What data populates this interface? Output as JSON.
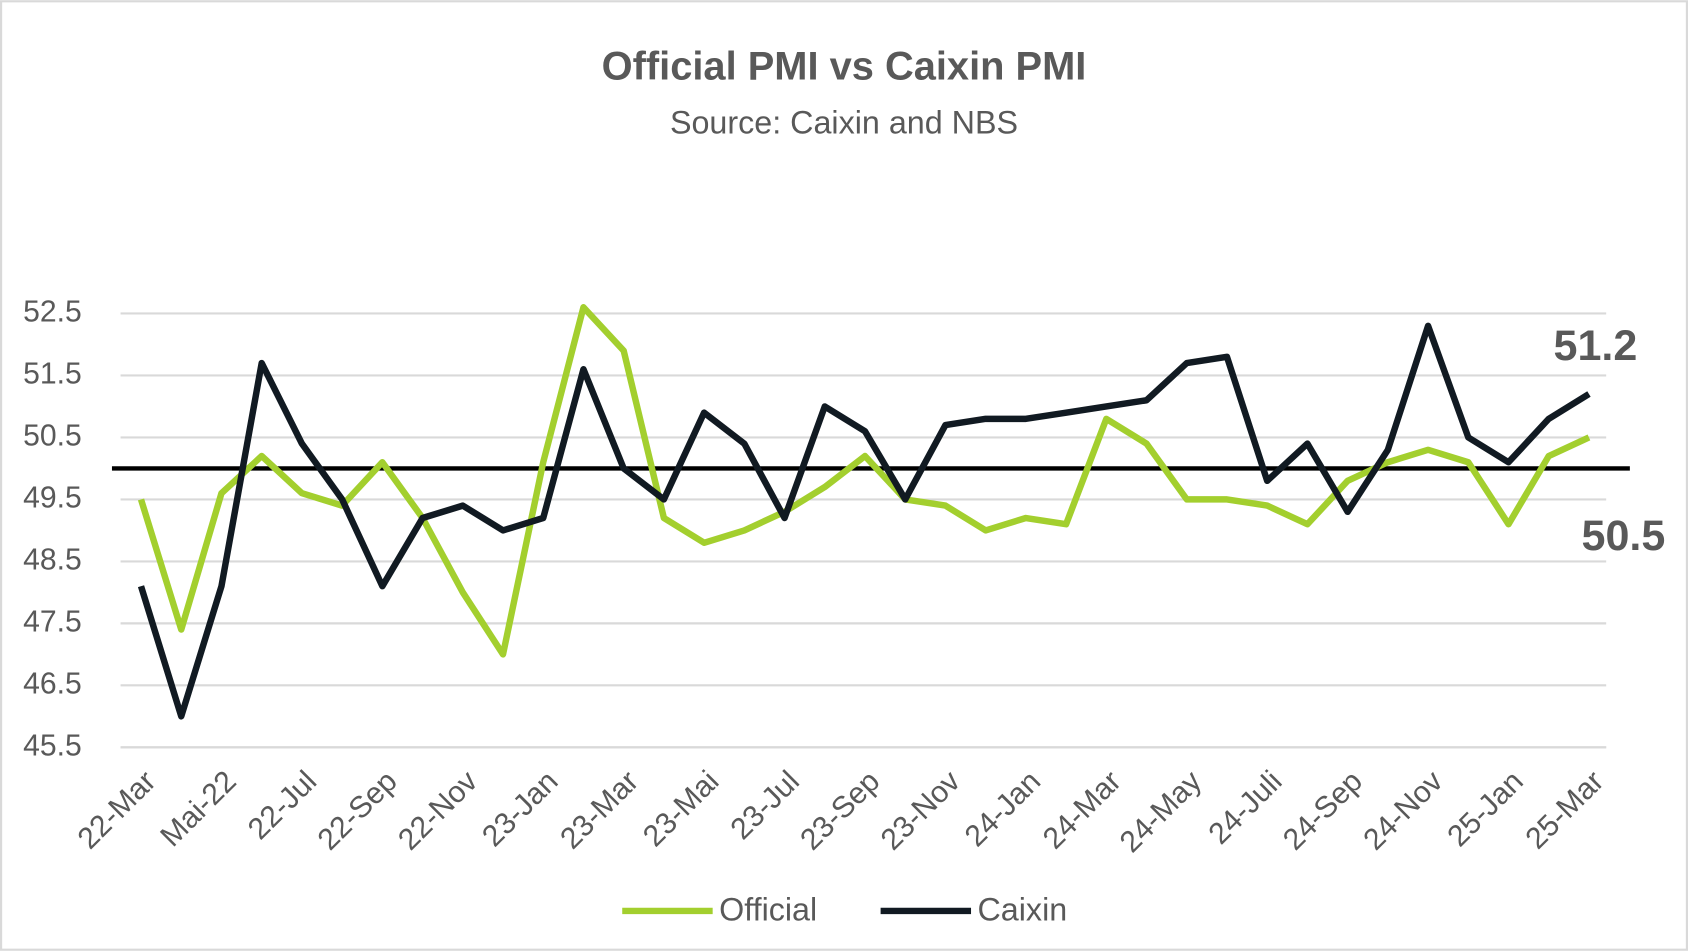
{
  "chart_data": {
    "type": "line",
    "title": "Official PMI vs Caixin PMI",
    "subtitle": "Source: Caixin and NBS",
    "categories": [
      "22-Mar",
      null,
      "Mai-22",
      null,
      "22-Jul",
      null,
      "22-Sep",
      null,
      "22-Nov",
      null,
      "23-Jan",
      null,
      "23-Mar",
      null,
      "23-Mai",
      null,
      "23-Jul",
      null,
      "23-Sep",
      null,
      "23-Nov",
      null,
      "24-Jan",
      null,
      "24-Mar",
      null,
      "24-May",
      null,
      "24-Juli",
      null,
      "24-Sep",
      null,
      "24-Nov",
      null,
      "25-Jan",
      null,
      "25-Mar"
    ],
    "series": [
      {
        "name": "Official",
        "color": "#a3cf2e",
        "values": [
          49.5,
          47.4,
          49.6,
          50.2,
          49.6,
          49.4,
          50.1,
          49.2,
          48.0,
          47.0,
          50.1,
          52.6,
          51.9,
          49.2,
          48.8,
          49.0,
          49.3,
          49.7,
          50.2,
          49.5,
          49.4,
          49.0,
          49.2,
          49.1,
          50.8,
          50.4,
          49.5,
          49.5,
          49.4,
          49.1,
          49.8,
          50.1,
          50.3,
          50.1,
          49.1,
          50.2,
          50.5
        ]
      },
      {
        "name": "Caixin",
        "color": "#111a22",
        "values": [
          48.1,
          46.0,
          48.1,
          51.7,
          50.4,
          49.5,
          48.1,
          49.2,
          49.4,
          49.0,
          49.2,
          51.6,
          50.0,
          49.5,
          50.9,
          50.4,
          49.2,
          51.0,
          50.6,
          49.5,
          50.7,
          50.8,
          50.8,
          50.9,
          51.0,
          51.1,
          51.7,
          51.8,
          49.8,
          50.4,
          49.3,
          50.3,
          52.3,
          50.5,
          50.1,
          50.8,
          51.2
        ]
      }
    ],
    "threshold": 50,
    "ylim": [
      45.5,
      52.5
    ],
    "yticks": [
      45.5,
      46.5,
      47.5,
      48.5,
      49.5,
      50.5,
      51.5,
      52.5
    ],
    "grid": true
  }
}
